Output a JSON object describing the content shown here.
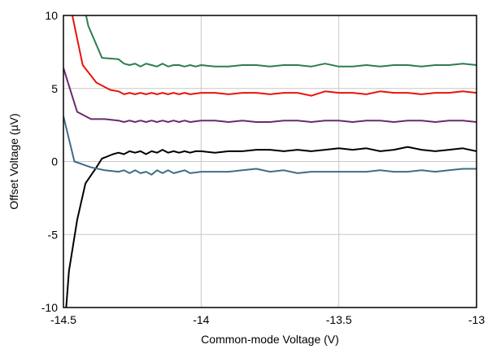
{
  "chart_data": {
    "type": "line",
    "xlabel": "Common-mode Voltage (V)",
    "ylabel": "Offset Voltage (µV)",
    "xlim": [
      -14.5,
      -13
    ],
    "ylim": [
      -10,
      10
    ],
    "grid": true,
    "legend": "none",
    "x_ticks": [
      "-14.5",
      "-14",
      "-13.5",
      "-13"
    ],
    "x_tick_values": [
      -14.5,
      -14,
      -13.5,
      -13
    ],
    "y_ticks": [
      "10",
      "5",
      "0",
      "-5",
      "-10"
    ],
    "y_tick_values": [
      10,
      5,
      0,
      -5,
      -10
    ],
    "series": [
      {
        "color": "#2e7d4f",
        "points": [
          [
            -14.42,
            10.2
          ],
          [
            -14.41,
            9.3
          ],
          [
            -14.36,
            7.1
          ],
          [
            -14.3,
            7.0
          ],
          [
            -14.28,
            6.7
          ],
          [
            -14.26,
            6.6
          ],
          [
            -14.24,
            6.7
          ],
          [
            -14.22,
            6.5
          ],
          [
            -14.2,
            6.7
          ],
          [
            -14.18,
            6.6
          ],
          [
            -14.16,
            6.5
          ],
          [
            -14.14,
            6.7
          ],
          [
            -14.12,
            6.5
          ],
          [
            -14.1,
            6.6
          ],
          [
            -14.08,
            6.6
          ],
          [
            -14.06,
            6.5
          ],
          [
            -14.04,
            6.6
          ],
          [
            -14.02,
            6.5
          ],
          [
            -14.0,
            6.6
          ],
          [
            -13.95,
            6.5
          ],
          [
            -13.9,
            6.5
          ],
          [
            -13.85,
            6.6
          ],
          [
            -13.8,
            6.6
          ],
          [
            -13.75,
            6.5
          ],
          [
            -13.7,
            6.6
          ],
          [
            -13.65,
            6.6
          ],
          [
            -13.6,
            6.5
          ],
          [
            -13.55,
            6.7
          ],
          [
            -13.5,
            6.5
          ],
          [
            -13.45,
            6.5
          ],
          [
            -13.4,
            6.6
          ],
          [
            -13.35,
            6.5
          ],
          [
            -13.3,
            6.6
          ],
          [
            -13.25,
            6.6
          ],
          [
            -13.2,
            6.5
          ],
          [
            -13.15,
            6.6
          ],
          [
            -13.1,
            6.6
          ],
          [
            -13.05,
            6.7
          ],
          [
            -13.0,
            6.6
          ]
        ]
      },
      {
        "color": "#e8140c",
        "points": [
          [
            -14.47,
            10.2
          ],
          [
            -14.43,
            6.6
          ],
          [
            -14.38,
            5.4
          ],
          [
            -14.33,
            4.9
          ],
          [
            -14.3,
            4.8
          ],
          [
            -14.28,
            4.6
          ],
          [
            -14.26,
            4.7
          ],
          [
            -14.24,
            4.6
          ],
          [
            -14.22,
            4.7
          ],
          [
            -14.2,
            4.6
          ],
          [
            -14.18,
            4.7
          ],
          [
            -14.16,
            4.6
          ],
          [
            -14.14,
            4.7
          ],
          [
            -14.12,
            4.6
          ],
          [
            -14.1,
            4.7
          ],
          [
            -14.08,
            4.6
          ],
          [
            -14.06,
            4.7
          ],
          [
            -14.04,
            4.6
          ],
          [
            -14.0,
            4.7
          ],
          [
            -13.95,
            4.7
          ],
          [
            -13.9,
            4.6
          ],
          [
            -13.85,
            4.7
          ],
          [
            -13.8,
            4.7
          ],
          [
            -13.75,
            4.6
          ],
          [
            -13.7,
            4.7
          ],
          [
            -13.65,
            4.7
          ],
          [
            -13.6,
            4.5
          ],
          [
            -13.55,
            4.8
          ],
          [
            -13.5,
            4.7
          ],
          [
            -13.45,
            4.7
          ],
          [
            -13.4,
            4.6
          ],
          [
            -13.35,
            4.8
          ],
          [
            -13.3,
            4.7
          ],
          [
            -13.25,
            4.7
          ],
          [
            -13.2,
            4.6
          ],
          [
            -13.15,
            4.7
          ],
          [
            -13.1,
            4.7
          ],
          [
            -13.05,
            4.8
          ],
          [
            -13.0,
            4.7
          ]
        ]
      },
      {
        "color": "#6a2a6e",
        "points": [
          [
            -14.5,
            6.4
          ],
          [
            -14.45,
            3.4
          ],
          [
            -14.4,
            2.9
          ],
          [
            -14.35,
            2.9
          ],
          [
            -14.3,
            2.8
          ],
          [
            -14.28,
            2.7
          ],
          [
            -14.26,
            2.8
          ],
          [
            -14.24,
            2.7
          ],
          [
            -14.22,
            2.8
          ],
          [
            -14.2,
            2.7
          ],
          [
            -14.18,
            2.8
          ],
          [
            -14.16,
            2.7
          ],
          [
            -14.14,
            2.8
          ],
          [
            -14.12,
            2.7
          ],
          [
            -14.1,
            2.8
          ],
          [
            -14.08,
            2.7
          ],
          [
            -14.06,
            2.8
          ],
          [
            -14.04,
            2.7
          ],
          [
            -14.0,
            2.8
          ],
          [
            -13.95,
            2.8
          ],
          [
            -13.9,
            2.7
          ],
          [
            -13.85,
            2.8
          ],
          [
            -13.8,
            2.7
          ],
          [
            -13.75,
            2.7
          ],
          [
            -13.7,
            2.8
          ],
          [
            -13.65,
            2.8
          ],
          [
            -13.6,
            2.7
          ],
          [
            -13.55,
            2.8
          ],
          [
            -13.5,
            2.8
          ],
          [
            -13.45,
            2.7
          ],
          [
            -13.4,
            2.8
          ],
          [
            -13.35,
            2.8
          ],
          [
            -13.3,
            2.7
          ],
          [
            -13.25,
            2.8
          ],
          [
            -13.2,
            2.8
          ],
          [
            -13.15,
            2.7
          ],
          [
            -13.1,
            2.8
          ],
          [
            -13.05,
            2.8
          ],
          [
            -13.0,
            2.7
          ]
        ]
      },
      {
        "color": "#000000",
        "points": [
          [
            -14.49,
            -10.0
          ],
          [
            -14.48,
            -7.5
          ],
          [
            -14.45,
            -4.0
          ],
          [
            -14.42,
            -1.5
          ],
          [
            -14.38,
            -0.4
          ],
          [
            -14.36,
            0.2
          ],
          [
            -14.32,
            0.5
          ],
          [
            -14.3,
            0.6
          ],
          [
            -14.28,
            0.5
          ],
          [
            -14.26,
            0.7
          ],
          [
            -14.24,
            0.6
          ],
          [
            -14.22,
            0.7
          ],
          [
            -14.2,
            0.5
          ],
          [
            -14.18,
            0.7
          ],
          [
            -14.16,
            0.6
          ],
          [
            -14.14,
            0.8
          ],
          [
            -14.12,
            0.6
          ],
          [
            -14.1,
            0.7
          ],
          [
            -14.08,
            0.6
          ],
          [
            -14.06,
            0.7
          ],
          [
            -14.04,
            0.6
          ],
          [
            -14.02,
            0.7
          ],
          [
            -14.0,
            0.7
          ],
          [
            -13.95,
            0.6
          ],
          [
            -13.9,
            0.7
          ],
          [
            -13.85,
            0.7
          ],
          [
            -13.8,
            0.8
          ],
          [
            -13.75,
            0.8
          ],
          [
            -13.7,
            0.7
          ],
          [
            -13.65,
            0.8
          ],
          [
            -13.6,
            0.7
          ],
          [
            -13.55,
            0.8
          ],
          [
            -13.5,
            0.9
          ],
          [
            -13.45,
            0.8
          ],
          [
            -13.4,
            0.9
          ],
          [
            -13.35,
            0.7
          ],
          [
            -13.3,
            0.8
          ],
          [
            -13.25,
            1.0
          ],
          [
            -13.2,
            0.8
          ],
          [
            -13.15,
            0.7
          ],
          [
            -13.1,
            0.8
          ],
          [
            -13.05,
            0.9
          ],
          [
            -13.0,
            0.7
          ]
        ]
      },
      {
        "color": "#3f6e85",
        "points": [
          [
            -14.5,
            3.1
          ],
          [
            -14.46,
            0.0
          ],
          [
            -14.4,
            -0.4
          ],
          [
            -14.35,
            -0.6
          ],
          [
            -14.3,
            -0.7
          ],
          [
            -14.28,
            -0.6
          ],
          [
            -14.26,
            -0.8
          ],
          [
            -14.24,
            -0.6
          ],
          [
            -14.22,
            -0.8
          ],
          [
            -14.2,
            -0.7
          ],
          [
            -14.18,
            -0.9
          ],
          [
            -14.16,
            -0.6
          ],
          [
            -14.14,
            -0.8
          ],
          [
            -14.12,
            -0.6
          ],
          [
            -14.1,
            -0.8
          ],
          [
            -14.08,
            -0.7
          ],
          [
            -14.06,
            -0.6
          ],
          [
            -14.04,
            -0.8
          ],
          [
            -14.0,
            -0.7
          ],
          [
            -13.95,
            -0.7
          ],
          [
            -13.9,
            -0.7
          ],
          [
            -13.85,
            -0.6
          ],
          [
            -13.8,
            -0.5
          ],
          [
            -13.75,
            -0.7
          ],
          [
            -13.7,
            -0.6
          ],
          [
            -13.65,
            -0.8
          ],
          [
            -13.6,
            -0.7
          ],
          [
            -13.55,
            -0.7
          ],
          [
            -13.5,
            -0.7
          ],
          [
            -13.45,
            -0.7
          ],
          [
            -13.4,
            -0.7
          ],
          [
            -13.35,
            -0.6
          ],
          [
            -13.3,
            -0.7
          ],
          [
            -13.25,
            -0.7
          ],
          [
            -13.2,
            -0.6
          ],
          [
            -13.15,
            -0.7
          ],
          [
            -13.1,
            -0.6
          ],
          [
            -13.05,
            -0.5
          ],
          [
            -13.0,
            -0.5
          ]
        ]
      }
    ]
  }
}
